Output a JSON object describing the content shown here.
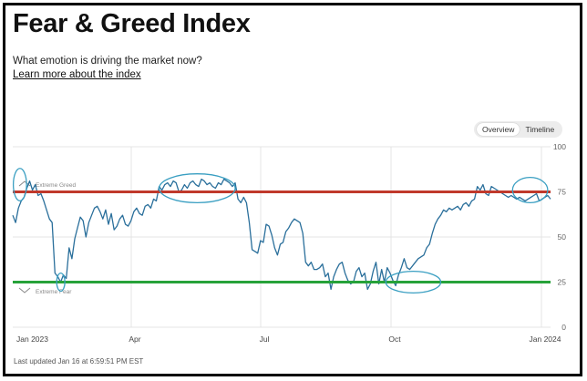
{
  "header": {
    "title": "Fear & Greed Index",
    "subtitle": "What emotion is driving the market now?",
    "learn_more": "Learn more about the index"
  },
  "toggle": {
    "overview": "Overview",
    "timeline": "Timeline"
  },
  "footer": {
    "last_updated": "Last updated Jan 16 at 6:59:51 PM EST"
  },
  "colors": {
    "line": "#2a6f9b",
    "greed_line": "#c0392b",
    "fear_line": "#27a23a",
    "circle": "#3a9fc2",
    "grid": "#e4e4e4"
  },
  "chart_data": {
    "type": "line",
    "ylim": [
      0,
      100
    ],
    "y_ticks": [
      "0",
      "25",
      "50",
      "75",
      "100"
    ],
    "x_labels": [
      "Jan 2023",
      "Apr",
      "Jul",
      "Oct",
      "Jan 2024"
    ],
    "zone_labels": {
      "greed": "Extreme Greed",
      "fear": "Extreme Fear"
    },
    "reference_lines": [
      {
        "label": "greed",
        "value": 75,
        "color": "#c0392b"
      },
      {
        "label": "fear",
        "value": 25,
        "color": "#27a23a"
      }
    ],
    "highlight_ranges": [
      {
        "x_start": 0.2,
        "x_end": 4.9,
        "y_center": 79,
        "y_half_height": 9
      },
      {
        "x_start": 15.6,
        "x_end": 18.5,
        "y_center": 25,
        "y_half_height": 5
      },
      {
        "x_start": 52.0,
        "x_end": 79.0,
        "y_center": 77,
        "y_half_height": 8
      },
      {
        "x_start": 132.5,
        "x_end": 152.0,
        "y_center": 25,
        "y_half_height": 6
      },
      {
        "x_start": 177.5,
        "x_end": 190.0,
        "y_center": 76,
        "y_half_height": 7
      }
    ],
    "series": [
      {
        "x": [
          0,
          1,
          2,
          3,
          4,
          5,
          6,
          7,
          8,
          9,
          10,
          11,
          12,
          13,
          14,
          15,
          16,
          17,
          18,
          19,
          20,
          21,
          22,
          23,
          24,
          25,
          26,
          27,
          28,
          29,
          30,
          31,
          32,
          33,
          34,
          35,
          36,
          37,
          38,
          39,
          40,
          41,
          42,
          43,
          44,
          45,
          46,
          47,
          48,
          49,
          50,
          51,
          52,
          53,
          54,
          55,
          56,
          57,
          58,
          59,
          60,
          61,
          62,
          63,
          64,
          65,
          66,
          67,
          68,
          69,
          70,
          71,
          72,
          73,
          74,
          75,
          76,
          77,
          78,
          79,
          80,
          81,
          82,
          83,
          84,
          85,
          86,
          87,
          88,
          89,
          90,
          91,
          92,
          93,
          94,
          95,
          96,
          97,
          98,
          99,
          100,
          101,
          102,
          103,
          104,
          105,
          106,
          107,
          108,
          109,
          110,
          111,
          112,
          113,
          114,
          115,
          116,
          117,
          118,
          119,
          120,
          121,
          122,
          123,
          124,
          125,
          126,
          127,
          128,
          129,
          130,
          131,
          132,
          133,
          134,
          135,
          136,
          137,
          138,
          139,
          140,
          141,
          142,
          143,
          144,
          145,
          146,
          147,
          148,
          149,
          150,
          151,
          152,
          153,
          154,
          155,
          156,
          157,
          158,
          159,
          160,
          161,
          162,
          163,
          164,
          165,
          166,
          167,
          168,
          169,
          170,
          171,
          172,
          173,
          174,
          175,
          176,
          177,
          178,
          179,
          180,
          181,
          182,
          183,
          184,
          185,
          186,
          187,
          188,
          189,
          190,
          191
        ],
        "y": [
          62,
          58,
          66,
          70,
          72,
          77,
          81,
          76,
          79,
          73,
          74,
          70,
          65,
          60,
          58,
          30,
          28,
          25,
          29,
          27,
          44,
          38,
          49,
          55,
          61,
          59,
          50,
          58,
          62,
          66,
          67,
          64,
          60,
          65,
          57,
          63,
          54,
          56,
          60,
          62,
          57,
          56,
          59,
          64,
          66,
          63,
          62,
          67,
          68,
          66,
          71,
          70,
          78,
          76,
          79,
          80,
          78,
          81,
          80,
          75,
          76,
          79,
          77,
          80,
          81,
          79,
          78,
          82,
          81,
          79,
          80,
          78,
          77,
          80,
          79,
          82,
          81,
          80,
          78,
          80,
          71,
          69,
          72,
          69,
          58,
          43,
          42,
          41,
          48,
          47,
          57,
          56,
          51,
          44,
          40,
          46,
          47,
          53,
          55,
          58,
          60,
          59,
          58,
          52,
          36,
          34,
          36,
          32,
          32,
          33,
          35,
          28,
          30,
          21,
          28,
          32,
          35,
          36,
          30,
          26,
          24,
          25,
          31,
          33,
          28,
          30,
          21,
          24,
          31,
          36,
          24,
          32,
          25,
          33,
          30,
          26,
          23,
          29,
          33,
          38,
          33,
          32,
          34,
          36,
          38,
          39,
          40,
          44,
          46,
          52,
          57,
          60,
          62,
          65,
          64,
          66,
          65,
          66,
          67,
          65,
          68,
          69,
          67,
          70,
          71,
          78,
          76,
          79,
          74,
          73,
          78,
          77,
          76,
          75,
          74,
          73,
          72,
          73,
          72,
          71,
          72,
          71,
          70,
          71,
          72,
          73,
          74,
          70,
          71,
          72,
          73,
          71
        ]
      }
    ]
  }
}
